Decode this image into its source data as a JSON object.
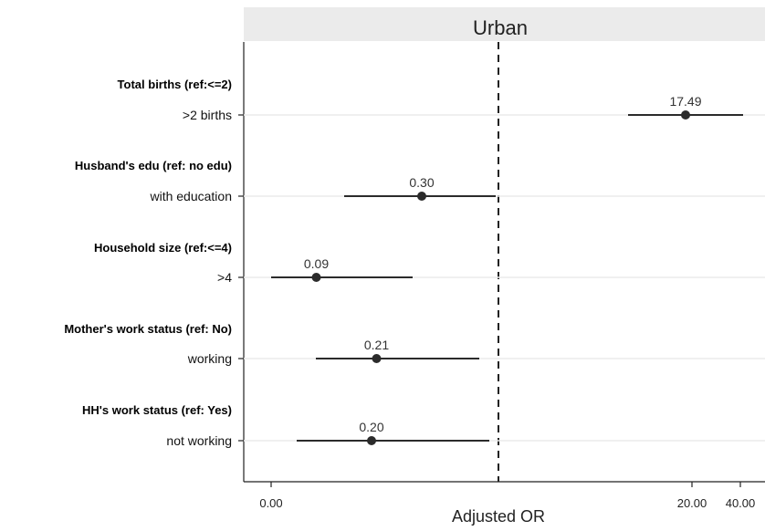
{
  "chart_data": {
    "type": "forest",
    "title": "Urban",
    "xlabel": "Adjusted OR",
    "x_ticks": [
      "0.00",
      "20.00",
      "40.00"
    ],
    "reference_line": "dashed",
    "rows": [
      {
        "group": "Total births (ref:<=2)",
        "level": ">2 births",
        "or": 17.49,
        "or_label": "17.49"
      },
      {
        "group": "Husband's edu (ref: no edu)",
        "level": "with education",
        "or": 0.3,
        "or_label": "0.30"
      },
      {
        "group": "Household size (ref:<=4)",
        "level": ">4",
        "or": 0.09,
        "or_label": "0.09"
      },
      {
        "group": "Mother's work status (ref: No)",
        "level": "working",
        "or": 0.21,
        "or_label": "0.21"
      },
      {
        "group": "HH's work status (ref: Yes)",
        "level": "not working",
        "or": 0.2,
        "or_label": "0.20"
      }
    ],
    "colors": {
      "background": "#ffffff",
      "panel_band": "#ebebeb",
      "marker": "#2b2b2b",
      "line": "#2b2b2b",
      "grid": "#ececec"
    }
  }
}
